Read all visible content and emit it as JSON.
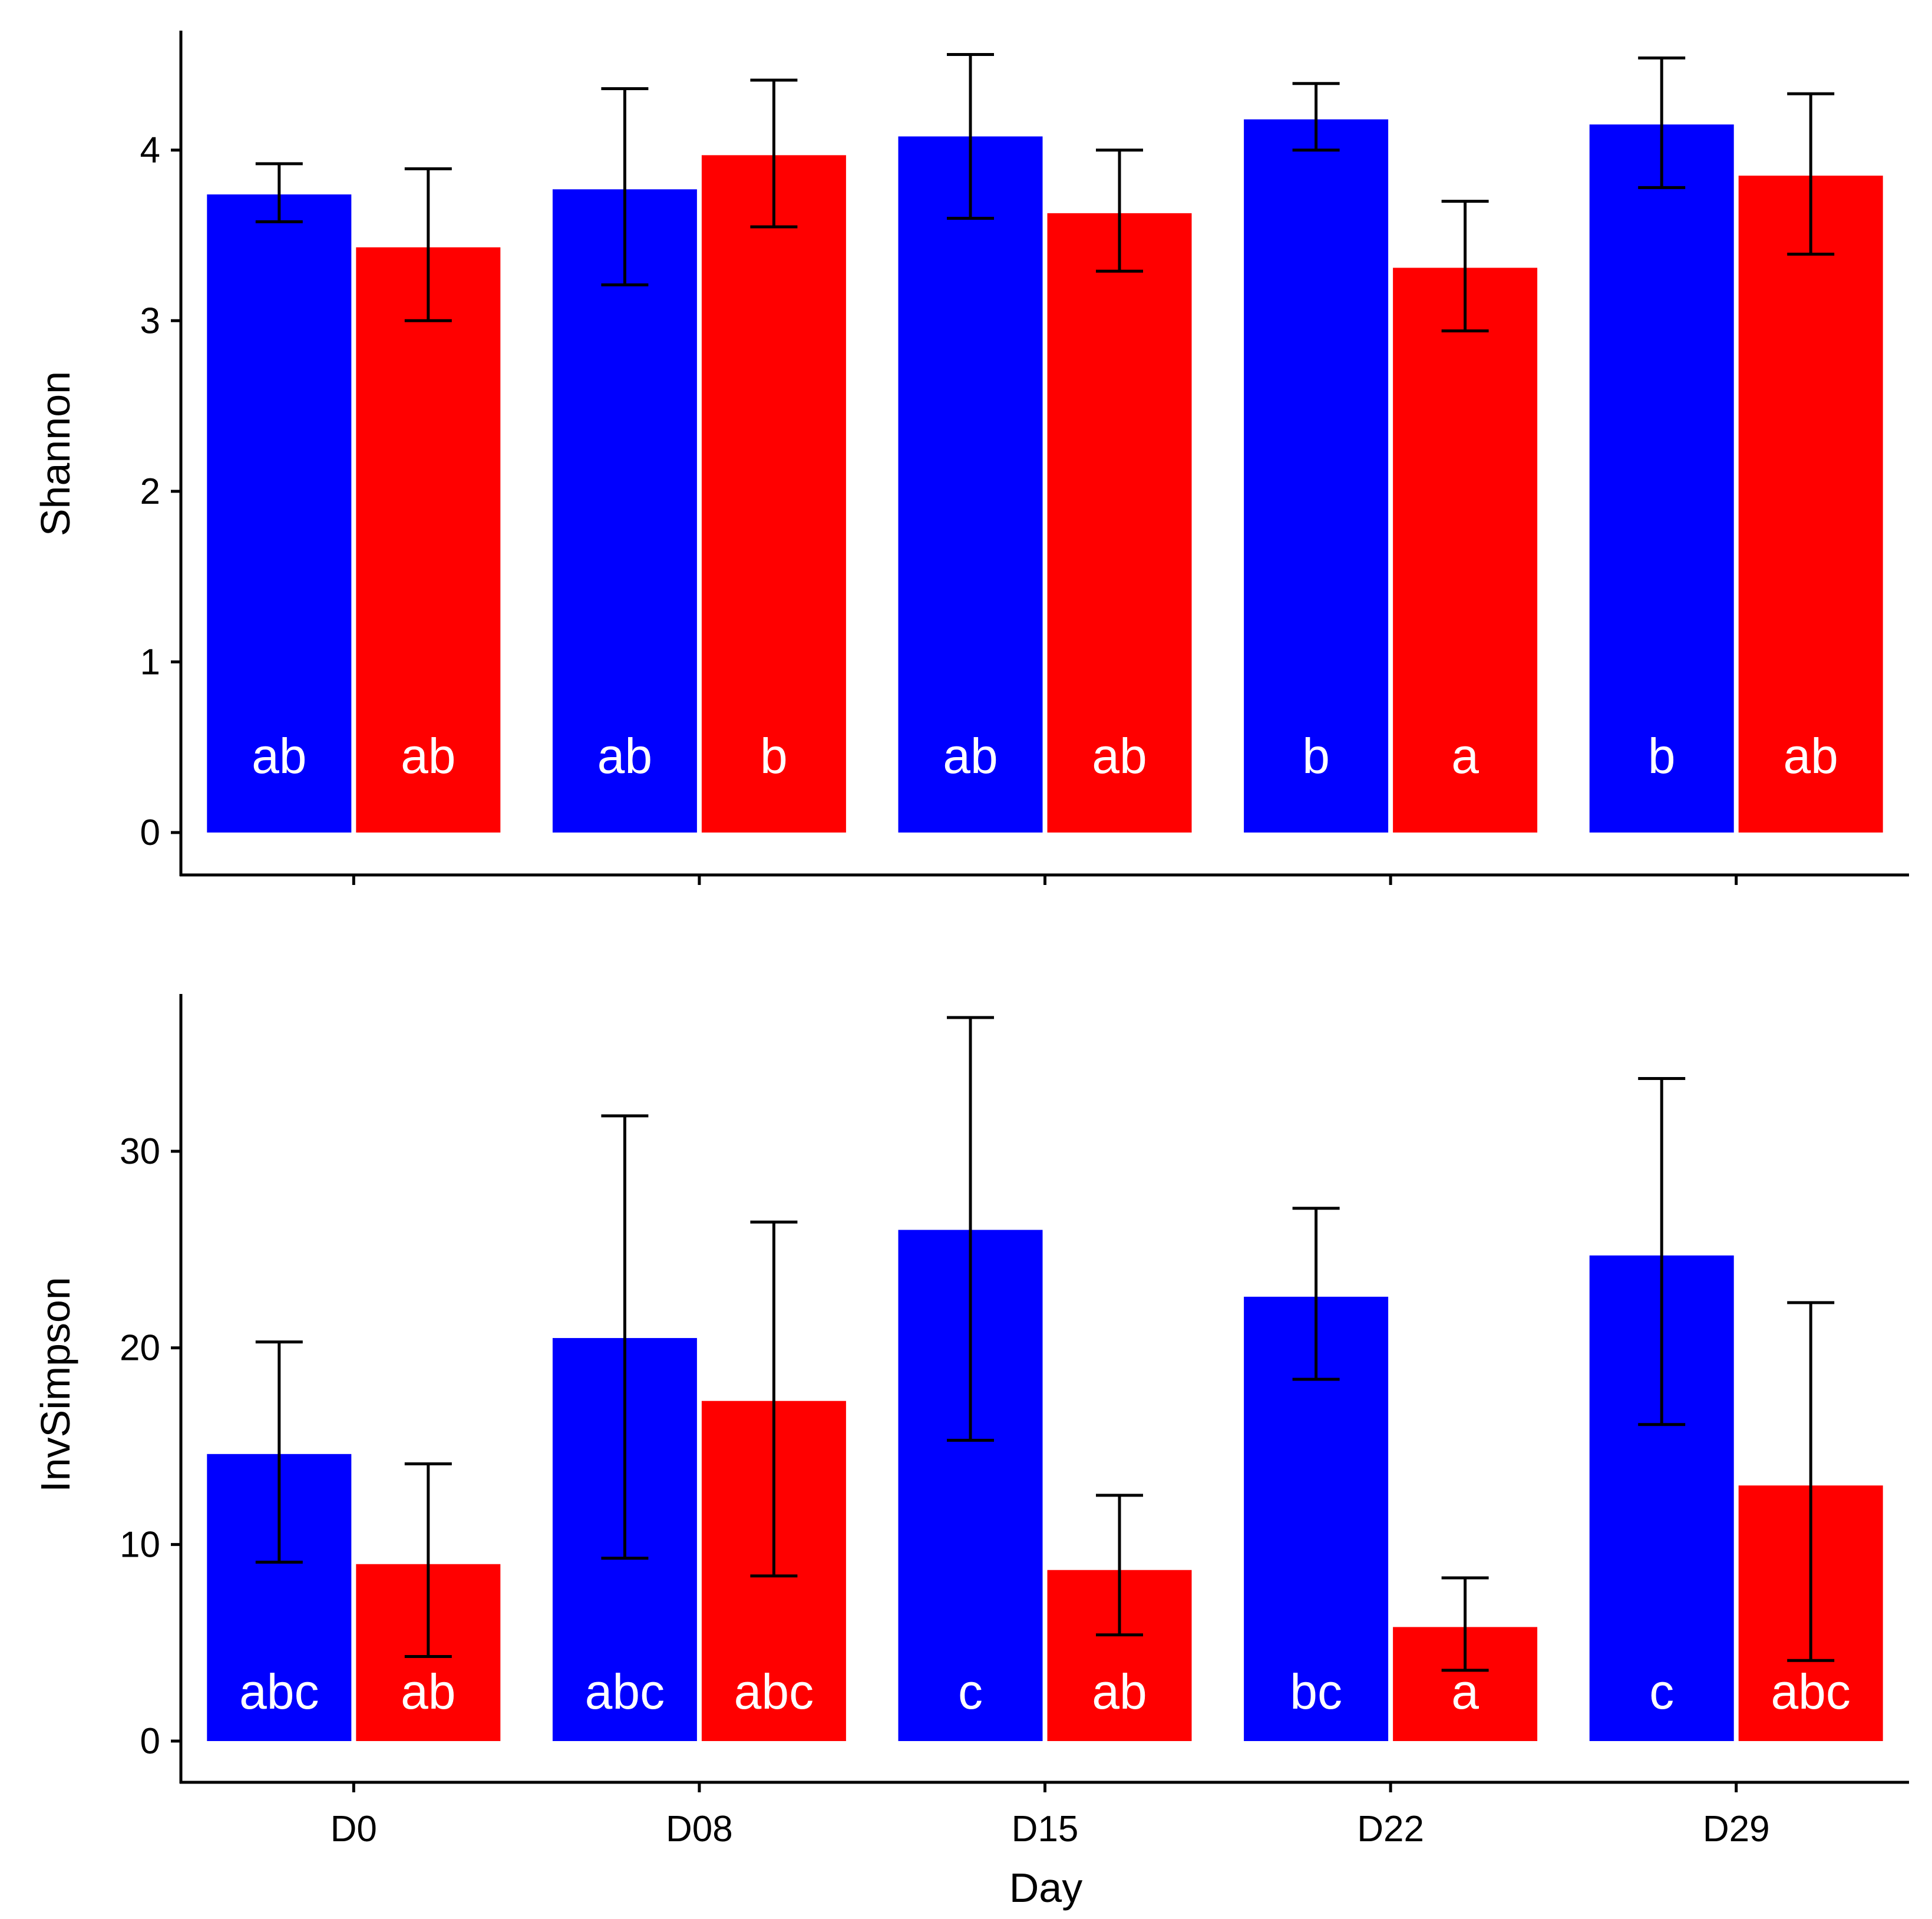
{
  "chart_data": [
    {
      "type": "bar",
      "ylabel": "Shannon",
      "xlabel": "",
      "categories": [
        "D0",
        "D08",
        "D15",
        "D22",
        "D29"
      ],
      "ylim": [
        0,
        4.7
      ],
      "yticks": [
        "0",
        "1",
        "2",
        "3",
        "4"
      ],
      "series": [
        {
          "name": "blue group",
          "color": "#0000ff",
          "values": [
            3.74,
            3.77,
            4.08,
            4.18,
            4.15
          ],
          "err_low": [
            3.58,
            3.21,
            3.6,
            4.0,
            3.78
          ],
          "err_high": [
            3.92,
            4.36,
            4.56,
            4.39,
            4.54
          ],
          "letters": [
            "ab",
            "ab",
            "ab",
            "b",
            "b"
          ]
        },
        {
          "name": "red group",
          "color": "#ff0000",
          "values": [
            3.43,
            3.97,
            3.63,
            3.31,
            3.85
          ],
          "err_low": [
            3.0,
            3.55,
            3.29,
            2.94,
            3.39
          ],
          "err_high": [
            3.89,
            4.41,
            4.0,
            3.7,
            4.33
          ],
          "letters": [
            "ab",
            "b",
            "ab",
            "a",
            "ab"
          ]
        }
      ]
    },
    {
      "type": "bar",
      "ylabel": "InvSimpson",
      "xlabel": "Day",
      "categories": [
        "D0",
        "D08",
        "D15",
        "D22",
        "D29"
      ],
      "ylim": [
        0,
        38
      ],
      "yticks": [
        "0",
        "10",
        "20",
        "30"
      ],
      "series": [
        {
          "name": "blue group",
          "color": "#0000ff",
          "values": [
            14.6,
            20.5,
            26.0,
            22.6,
            24.7
          ],
          "err_low": [
            9.1,
            9.3,
            15.3,
            18.4,
            16.1
          ],
          "err_high": [
            20.3,
            31.8,
            36.8,
            27.1,
            33.7
          ],
          "letters": [
            "abc",
            "abc",
            "c",
            "bc",
            "c"
          ]
        },
        {
          "name": "red group",
          "color": "#ff0000",
          "values": [
            9.0,
            17.3,
            8.7,
            5.8,
            13.0
          ],
          "err_low": [
            4.3,
            8.4,
            5.4,
            3.6,
            4.1
          ],
          "err_high": [
            14.1,
            26.4,
            12.5,
            8.3,
            22.3
          ],
          "letters": [
            "ab",
            "abc",
            "ab",
            "a",
            "abc"
          ]
        }
      ]
    }
  ]
}
